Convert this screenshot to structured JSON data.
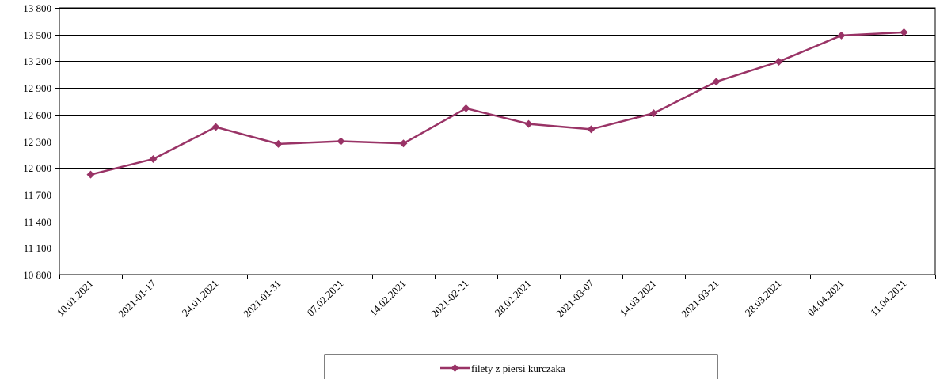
{
  "chart_data": {
    "type": "line",
    "title": "",
    "xlabel": "",
    "ylabel": "",
    "categories": [
      "10.01.2021",
      "2021-01-17",
      "24.01.2021",
      "2021-01-31",
      "07.02.2021",
      "14.02.2021",
      "2021-02-21",
      "28.02.2021",
      "2021-03-07",
      "14.03.2021",
      "2021-03-21",
      "28.03.2021",
      "04.04.2021",
      "11.04.2021"
    ],
    "series": [
      {
        "name": "filety z piersi kurczaka",
        "color": "#993366",
        "marker": "diamond",
        "values": [
          11925,
          12100,
          12460,
          12270,
          12300,
          12275,
          12670,
          12495,
          12435,
          12615,
          12970,
          13195,
          13490,
          13525
        ]
      }
    ],
    "ylim": [
      10800,
      13800
    ],
    "yticks": [
      10800,
      11100,
      11400,
      11700,
      12000,
      12300,
      12600,
      12900,
      13200,
      13500,
      13800
    ],
    "ytick_labels": [
      "10 800",
      "11 100",
      "11 400",
      "11 700",
      "12 000",
      "12 300",
      "12 600",
      "12 900",
      "13 200",
      "13 500",
      "13 800"
    ],
    "grid": "horizontal",
    "legend": "bottom"
  }
}
